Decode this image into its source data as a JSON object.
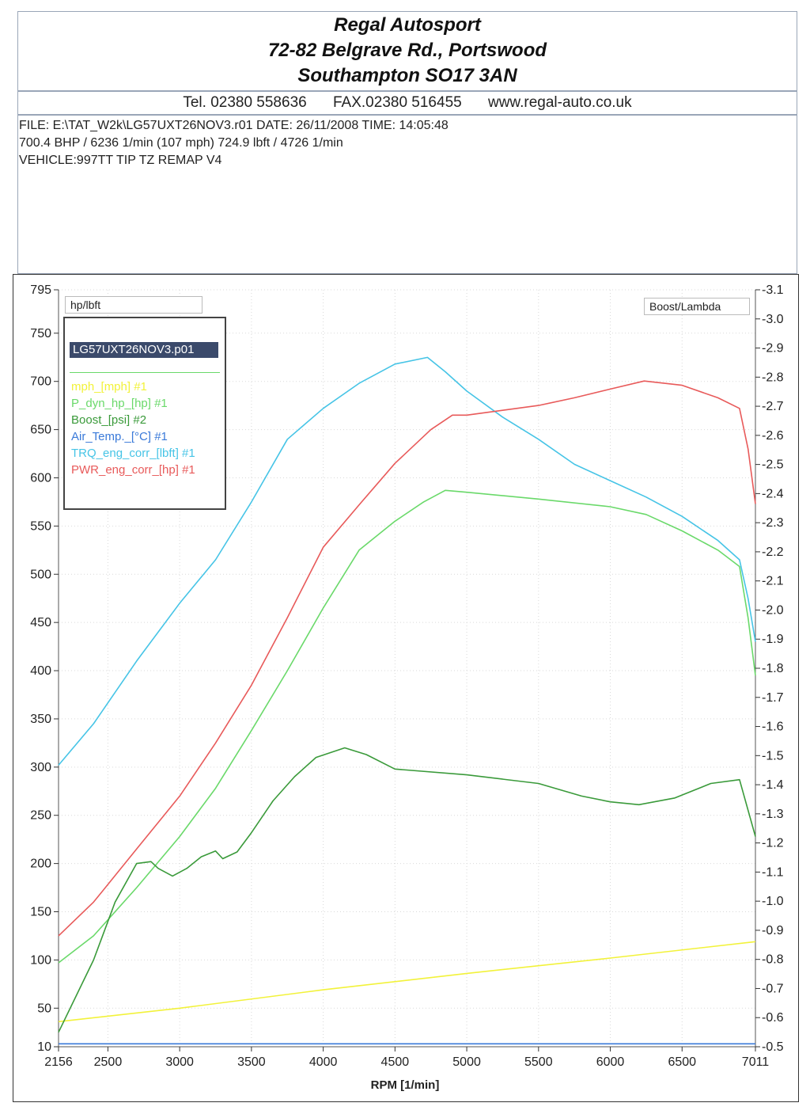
{
  "header": {
    "company": "Regal Autosport",
    "address1": "72-82 Belgrave Rd., Portswood",
    "address2": "Southampton SO17 3AN",
    "tel": "Tel. 02380 558636",
    "fax": "FAX.02380 516455",
    "web": "www.regal-auto.co.uk"
  },
  "info": {
    "line1": "FILE: E:\\TAT_W2k\\LG57UXT26NOV3.r01  DATE: 26/11/2008  TIME: 14:05:48",
    "line2": "700.4 BHP / 6236 1/min (107 mph)    724.9 lbft / 4726 1/min",
    "line3": "VEHICLE:997TT TIP TZ REMAP V4"
  },
  "labels": {
    "left_scale": "hp/lbft",
    "right_scale": "Boost/Lambda",
    "legend_title": "LG57UXT26NOV3.p01"
  },
  "chart_data": {
    "type": "line",
    "xlabel": "RPM  [1/min]",
    "xlim": [
      2156,
      7011
    ],
    "ylim": [
      10,
      795
    ],
    "y2lim": [
      -0.5,
      -3.1
    ],
    "x_ticks": [
      2156,
      2500,
      3000,
      3500,
      4000,
      4500,
      5000,
      5500,
      6000,
      6500,
      7011
    ],
    "y_ticks": [
      10,
      50,
      100,
      150,
      200,
      250,
      300,
      350,
      400,
      450,
      500,
      550,
      600,
      650,
      700,
      750,
      795
    ],
    "y2_ticks": [
      "-3.1",
      "-3.0",
      "-2.9",
      "-2.8",
      "-2.7",
      "-2.6",
      "-2.5",
      "-2.4",
      "-2.3",
      "-2.2",
      "-2.1",
      "-2.0",
      "-1.9",
      "-1.8",
      "-1.7",
      "-1.6",
      "-1.5",
      "-1.4",
      "-1.3",
      "-1.2",
      "-1.1",
      "-1.0",
      "-0.9",
      "-0.8",
      "-0.7",
      "-0.6",
      "-0.5"
    ],
    "grid": true,
    "legend_position": "top-left",
    "series": [
      {
        "name": "mph_[mph] #1",
        "color": "#f2f23a",
        "points": [
          [
            2156,
            36
          ],
          [
            3000,
            50
          ],
          [
            4000,
            69
          ],
          [
            5000,
            86
          ],
          [
            6000,
            102
          ],
          [
            7011,
            119
          ]
        ]
      },
      {
        "name": "P_dyn_hp_[hp] #1",
        "color": "#6ad96a",
        "points": [
          [
            2156,
            97
          ],
          [
            2400,
            125
          ],
          [
            2700,
            175
          ],
          [
            3000,
            228
          ],
          [
            3250,
            278
          ],
          [
            3500,
            338
          ],
          [
            3750,
            400
          ],
          [
            4000,
            465
          ],
          [
            4250,
            525
          ],
          [
            4500,
            555
          ],
          [
            4700,
            575
          ],
          [
            4850,
            587
          ],
          [
            5000,
            585
          ],
          [
            5500,
            578
          ],
          [
            6000,
            570
          ],
          [
            6250,
            562
          ],
          [
            6500,
            545
          ],
          [
            6750,
            525
          ],
          [
            6900,
            508
          ],
          [
            6960,
            455
          ],
          [
            7011,
            395
          ]
        ]
      },
      {
        "name": "Boost_[psi] #2",
        "color": "#3a9a3a",
        "points": [
          [
            2156,
            25
          ],
          [
            2400,
            100
          ],
          [
            2550,
            160
          ],
          [
            2700,
            200
          ],
          [
            2800,
            202
          ],
          [
            2850,
            195
          ],
          [
            2950,
            187
          ],
          [
            3050,
            195
          ],
          [
            3150,
            207
          ],
          [
            3250,
            213
          ],
          [
            3300,
            205
          ],
          [
            3400,
            212
          ],
          [
            3500,
            232
          ],
          [
            3650,
            265
          ],
          [
            3800,
            290
          ],
          [
            3950,
            310
          ],
          [
            4150,
            320
          ],
          [
            4300,
            313
          ],
          [
            4500,
            298
          ],
          [
            5000,
            292
          ],
          [
            5500,
            283
          ],
          [
            5800,
            270
          ],
          [
            6000,
            264
          ],
          [
            6200,
            261
          ],
          [
            6450,
            268
          ],
          [
            6700,
            283
          ],
          [
            6900,
            287
          ],
          [
            7011,
            228
          ]
        ]
      },
      {
        "name": "Air_Temp._[°C] #1",
        "color": "#3a7ad9",
        "points": [
          [
            2156,
            13
          ],
          [
            7011,
            13
          ]
        ]
      },
      {
        "name": "TRQ_eng_corr_[lbft] #1",
        "color": "#46c4e6",
        "points": [
          [
            2156,
            302
          ],
          [
            2400,
            345
          ],
          [
            2700,
            410
          ],
          [
            3000,
            470
          ],
          [
            3250,
            515
          ],
          [
            3500,
            575
          ],
          [
            3750,
            640
          ],
          [
            4000,
            672
          ],
          [
            4250,
            698
          ],
          [
            4500,
            718
          ],
          [
            4726,
            724.9
          ],
          [
            4850,
            710
          ],
          [
            5000,
            690
          ],
          [
            5250,
            663
          ],
          [
            5500,
            640
          ],
          [
            5750,
            614
          ],
          [
            6000,
            597
          ],
          [
            6250,
            580
          ],
          [
            6500,
            560
          ],
          [
            6750,
            535
          ],
          [
            6900,
            515
          ],
          [
            6960,
            475
          ],
          [
            7011,
            430
          ]
        ]
      },
      {
        "name": "PWR_eng_corr_[hp] #1",
        "color": "#e85a5a",
        "points": [
          [
            2156,
            125
          ],
          [
            2400,
            160
          ],
          [
            2700,
            215
          ],
          [
            3000,
            270
          ],
          [
            3250,
            325
          ],
          [
            3500,
            385
          ],
          [
            3750,
            455
          ],
          [
            4000,
            528
          ],
          [
            4250,
            572
          ],
          [
            4500,
            615
          ],
          [
            4750,
            650
          ],
          [
            4900,
            665
          ],
          [
            5000,
            665
          ],
          [
            5250,
            670
          ],
          [
            5500,
            675
          ],
          [
            5750,
            683
          ],
          [
            6000,
            692
          ],
          [
            6236,
            700.4
          ],
          [
            6500,
            696
          ],
          [
            6750,
            683
          ],
          [
            6900,
            672
          ],
          [
            6960,
            630
          ],
          [
            7011,
            573
          ]
        ]
      }
    ]
  }
}
